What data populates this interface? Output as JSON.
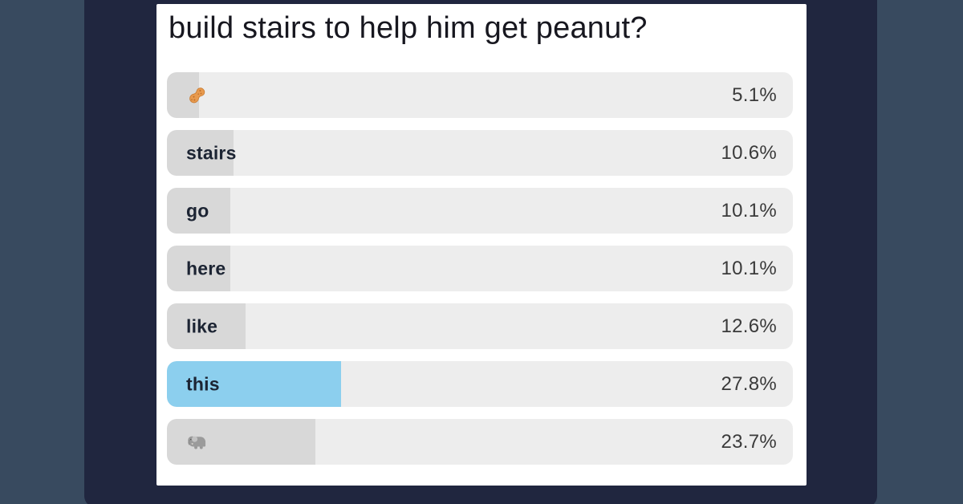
{
  "page": {
    "background_color": "#384A5F",
    "panel_color": "#20263F",
    "card_color": "#FFFFFF"
  },
  "poll": {
    "title": "build stairs to help him get peanut?",
    "colors": {
      "bar_background": "#EDEDED",
      "fill_default": "#D8D8D8",
      "fill_highlight": "#8CCFEE"
    },
    "options": [
      {
        "label": "🥜",
        "icon": "peanut",
        "percent": "5.1%",
        "value": 5.1,
        "highlighted": false
      },
      {
        "label": "stairs",
        "percent": "10.6%",
        "value": 10.6,
        "highlighted": false
      },
      {
        "label": "go",
        "percent": "10.1%",
        "value": 10.1,
        "highlighted": false
      },
      {
        "label": "here",
        "percent": "10.1%",
        "value": 10.1,
        "highlighted": false
      },
      {
        "label": "like",
        "percent": "12.6%",
        "value": 12.6,
        "highlighted": false
      },
      {
        "label": "this",
        "percent": "27.8%",
        "value": 27.8,
        "highlighted": true
      },
      {
        "label": "🐘",
        "icon": "elephant",
        "percent": "23.7%",
        "value": 23.7,
        "highlighted": false
      }
    ]
  },
  "chart_data": {
    "type": "bar",
    "orientation": "horizontal",
    "title": "build stairs to help him get peanut?",
    "categories": [
      "🥜",
      "stairs",
      "go",
      "here",
      "like",
      "this",
      "🐘"
    ],
    "values": [
      5.1,
      10.6,
      10.1,
      10.1,
      12.6,
      27.8,
      23.7
    ],
    "unit": "%",
    "value_labels": [
      "5.1%",
      "10.6%",
      "10.1%",
      "10.1%",
      "12.6%",
      "27.8%",
      "23.7%"
    ],
    "xlim": [
      0,
      100
    ],
    "highlighted_category": "this",
    "grid": false,
    "legend": false
  }
}
